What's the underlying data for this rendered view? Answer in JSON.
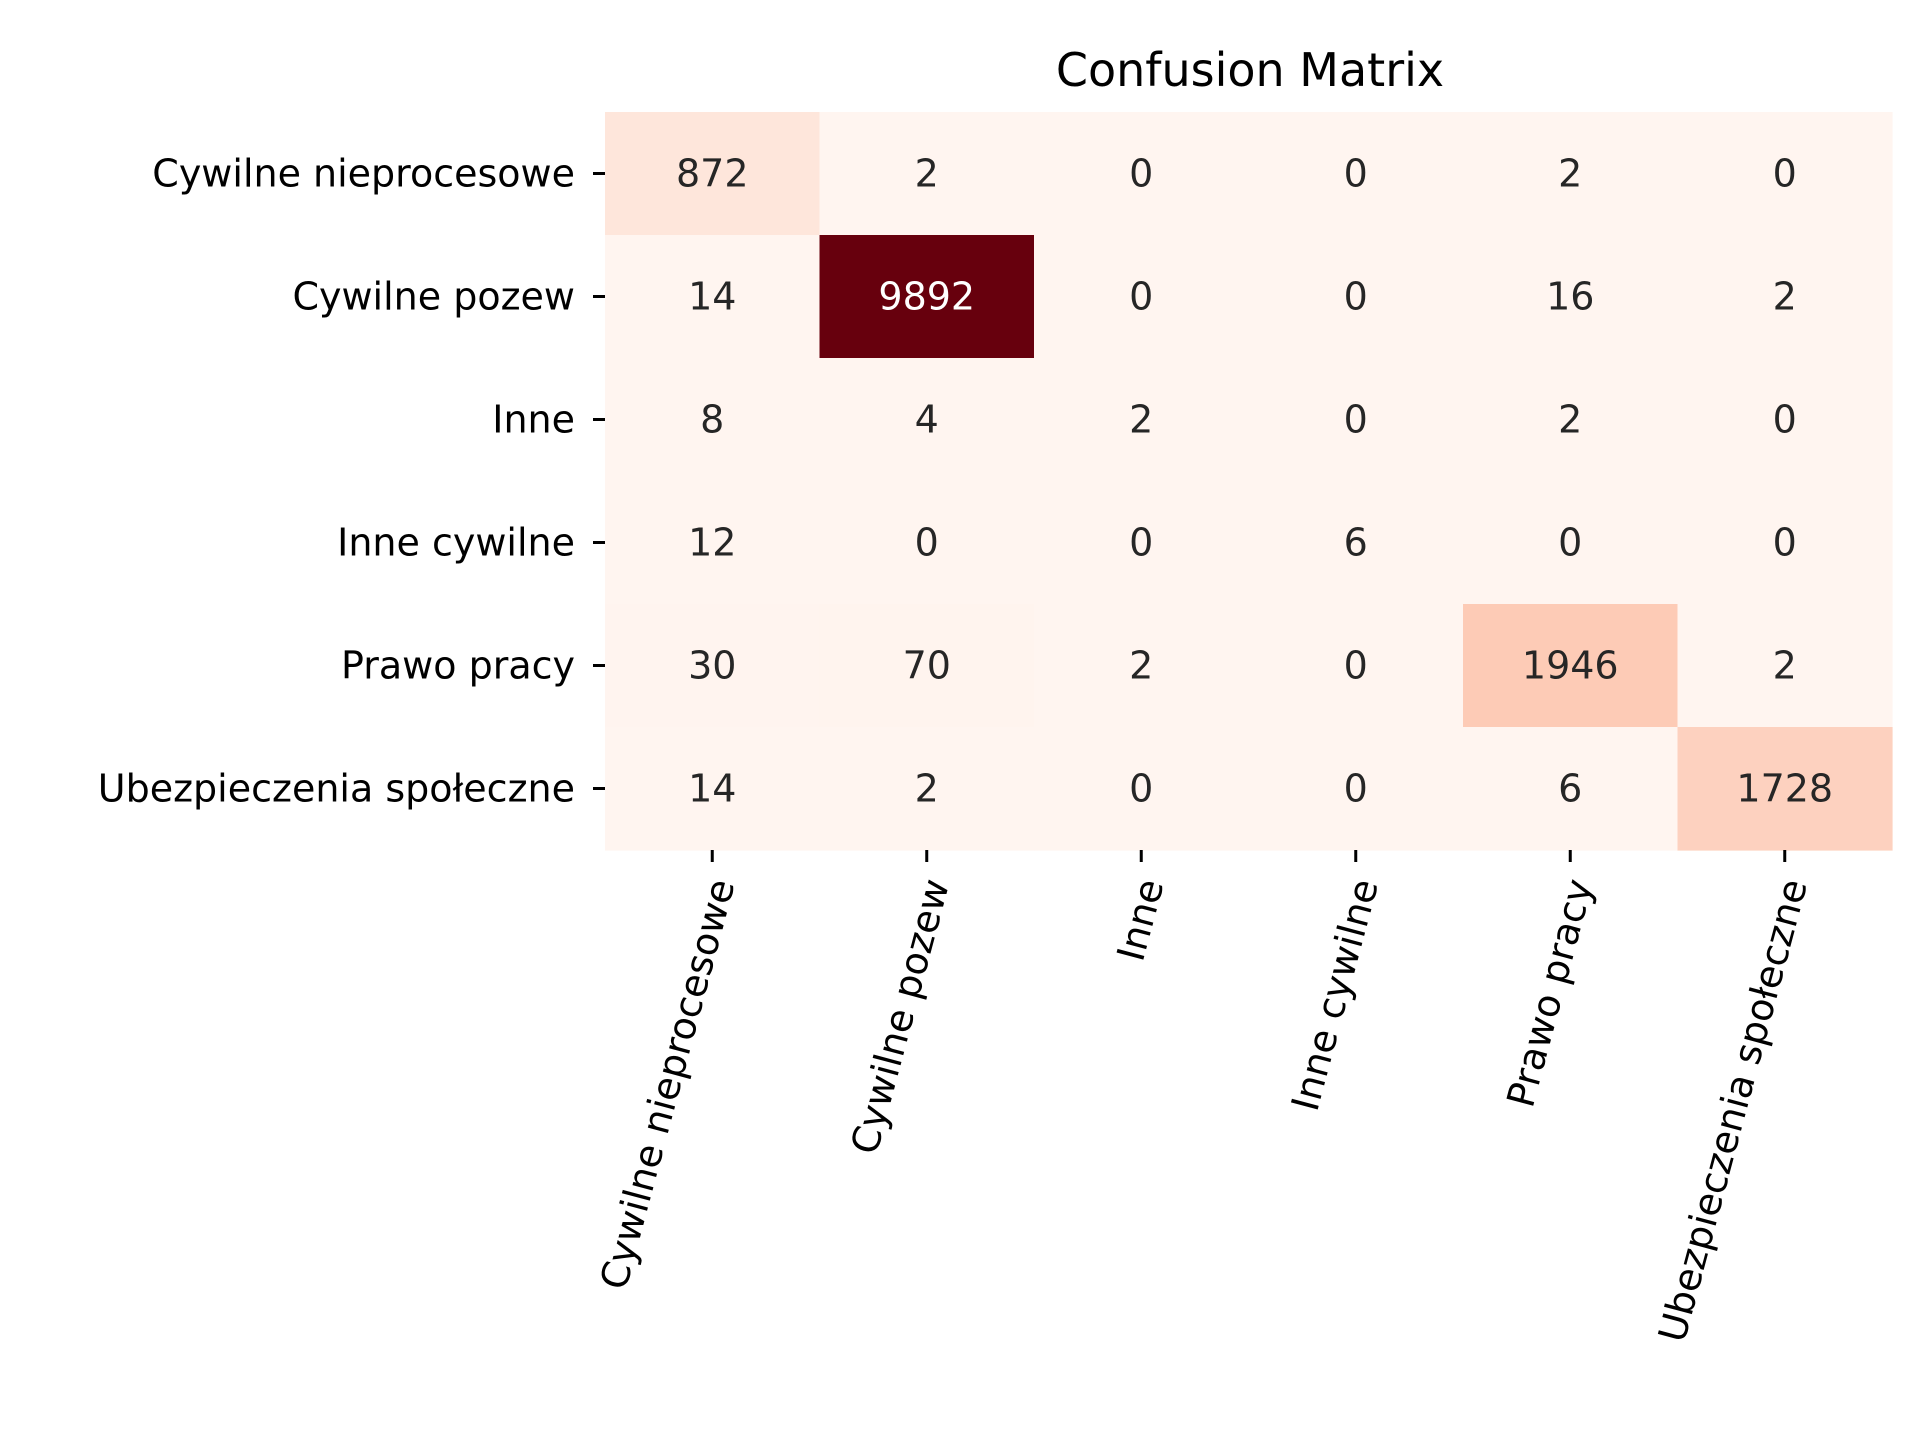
{
  "chart_data": {
    "type": "heatmap",
    "title": "Confusion Matrix",
    "xlabel": "",
    "ylabel": "",
    "x_categories": [
      "Cywilne nieprocesowe",
      "Cywilne pozew",
      "Inne",
      "Inne cywilne",
      "Prawo pracy",
      "Ubezpieczenia społeczne"
    ],
    "y_categories": [
      "Cywilne nieprocesowe",
      "Cywilne pozew",
      "Inne",
      "Inne cywilne",
      "Prawo pracy",
      "Ubezpieczenia społeczne"
    ],
    "values": [
      [
        872,
        2,
        0,
        0,
        2,
        0
      ],
      [
        14,
        9892,
        0,
        0,
        16,
        2
      ],
      [
        8,
        4,
        2,
        0,
        2,
        0
      ],
      [
        12,
        0,
        0,
        6,
        0,
        0
      ],
      [
        30,
        70,
        2,
        0,
        1946,
        2
      ],
      [
        14,
        2,
        0,
        0,
        6,
        1728
      ]
    ],
    "colormap": "Reds",
    "colorbar": false,
    "x_tick_rotation": 75
  }
}
